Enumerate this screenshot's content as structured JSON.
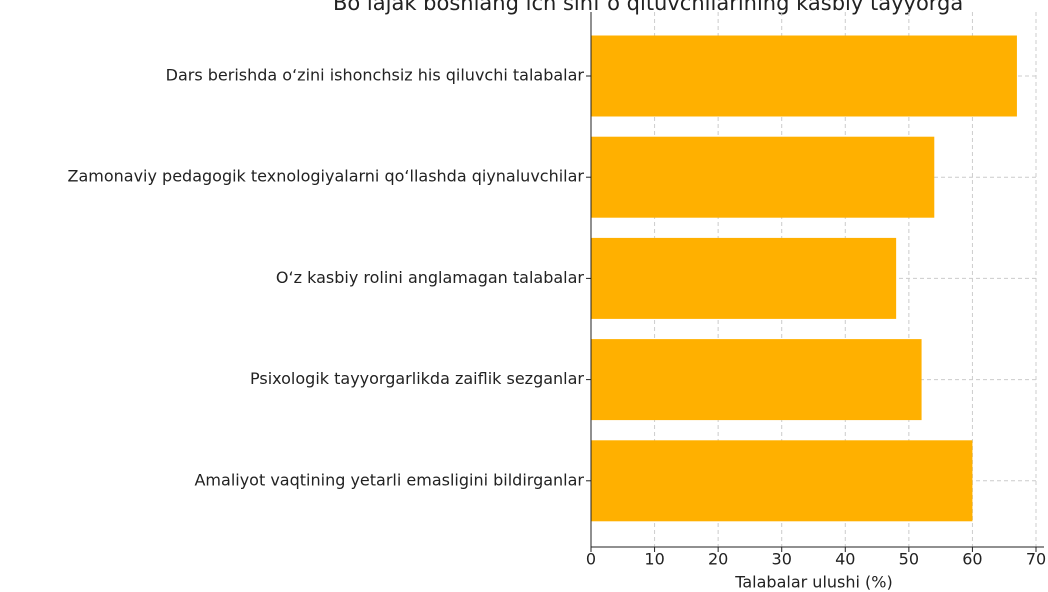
{
  "chart_data": {
    "type": "barh",
    "title": "Bo‘lajak boshlang‘ich sinf o‘qituvchilarining kasbiy tayyorga",
    "categories": [
      "Dars berishda o‘zini ishonchsiz his qiluvchi talabalar",
      "Zamonaviy pedagogik texnologiyalarni qo‘llashda qiynaluvchilar",
      "O‘z kasbiy rolini anglamagan talabalar",
      "Psixologik tayyorgarlikda zaiflik sezganlar",
      "Amaliyot vaqtining yetarli emasligini bildirganlar"
    ],
    "values": [
      67,
      54,
      48,
      52,
      60
    ],
    "color": "#ffb000",
    "xlabel": "Talabalar ulushi (%)",
    "xlim": [
      0,
      70
    ],
    "xticks": [
      0,
      10,
      20,
      30,
      40,
      50,
      60,
      70
    ],
    "grid": true
  }
}
